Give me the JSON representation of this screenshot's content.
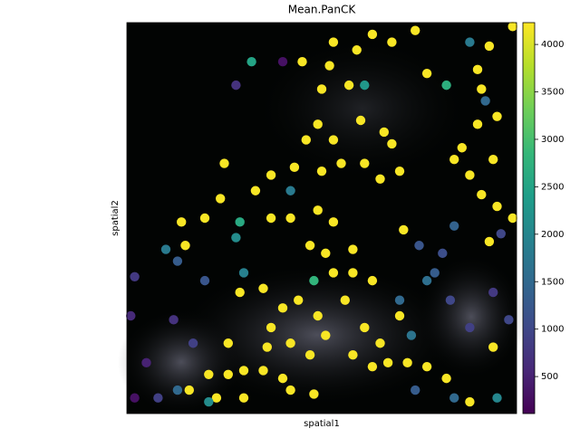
{
  "chart_data": {
    "type": "scatter",
    "title": "Mean.PanCK",
    "xlabel": "spatial1",
    "ylabel": "spatial2",
    "xlim": [
      0,
      100
    ],
    "ylim": [
      0,
      100
    ],
    "colormap": "viridis",
    "clim": [
      110,
      4230
    ],
    "cticks": [
      500,
      1000,
      1500,
      2000,
      2500,
      3000,
      3500,
      4000
    ],
    "x": [
      53,
      63,
      74,
      68,
      59,
      52,
      45,
      50,
      57,
      77,
      90,
      93,
      99,
      91,
      95,
      90,
      49,
      46,
      53,
      60,
      68,
      66,
      61,
      65,
      70,
      55,
      50,
      43,
      37,
      33,
      25,
      24,
      20,
      14,
      15,
      37,
      42,
      49,
      53,
      58,
      51,
      47,
      71,
      84,
      88,
      94,
      86,
      91,
      95,
      99,
      93,
      35,
      40,
      37,
      44,
      49,
      56,
      51,
      61,
      65,
      63,
      70,
      67,
      63,
      72,
      58,
      47,
      42,
      36,
      35,
      40,
      30,
      26,
      21,
      23,
      30,
      42,
      48,
      58,
      53,
      29,
      26,
      77,
      82,
      88,
      94,
      16,
      2,
      1,
      5,
      2,
      12,
      17,
      20,
      10,
      28,
      13,
      79,
      83,
      88,
      94,
      98,
      84,
      81,
      75,
      77,
      28,
      40,
      32,
      88,
      82,
      61,
      42,
      29,
      30,
      48,
      70,
      73,
      74,
      84,
      95,
      13,
      8,
      21,
      92,
      96
    ],
    "y": [
      95,
      97,
      98,
      95,
      93,
      89,
      90,
      83,
      84,
      87,
      88,
      94,
      99,
      83,
      76,
      74,
      74,
      70,
      70,
      75,
      69,
      72,
      64,
      60,
      62,
      64,
      62,
      63,
      61,
      57,
      64,
      55,
      50,
      49,
      43,
      50,
      50,
      52,
      49,
      42,
      41,
      43,
      47,
      65,
      61,
      65,
      68,
      56,
      53,
      50,
      44,
      32,
      27,
      22,
      29,
      25,
      29,
      20,
      22,
      18,
      34,
      25,
      13,
      12,
      13,
      15,
      15,
      18,
      17,
      11,
      9,
      11,
      10,
      10,
      4,
      4,
      6,
      5,
      36,
      36,
      31,
      18,
      12,
      9,
      3,
      17,
      6,
      35,
      25,
      13,
      4,
      24,
      18,
      34,
      42,
      45,
      39,
      36,
      29,
      22,
      31,
      24,
      48,
      41,
      43,
      34,
      84,
      90,
      90,
      95,
      84,
      84,
      57,
      49,
      36,
      34,
      29,
      20,
      6,
      4,
      4,
      6,
      4,
      3,
      80,
      46
    ],
    "values": [
      4200,
      4200,
      4200,
      4200,
      4200,
      4200,
      4200,
      4200,
      4200,
      4200,
      4200,
      4200,
      4200,
      4200,
      4200,
      4200,
      4200,
      4200,
      4200,
      4200,
      4200,
      4200,
      4200,
      4200,
      4200,
      4200,
      4200,
      4200,
      4200,
      4200,
      4200,
      4200,
      4200,
      4200,
      4200,
      4200,
      4200,
      4200,
      4200,
      4200,
      4200,
      4200,
      4200,
      4200,
      4200,
      4200,
      4200,
      4200,
      4200,
      4200,
      4200,
      4200,
      4200,
      4200,
      4200,
      4200,
      4200,
      4200,
      4200,
      4200,
      4200,
      4200,
      4200,
      4200,
      4200,
      4200,
      4200,
      4200,
      4200,
      4200,
      4200,
      4200,
      4200,
      4200,
      4200,
      4200,
      4200,
      4200,
      4200,
      4200,
      4200,
      4200,
      4200,
      4200,
      4200,
      4200,
      4200,
      800,
      600,
      500,
      300,
      700,
      900,
      1200,
      1800,
      2100,
      1300,
      1300,
      1000,
      900,
      800,
      1000,
      1400,
      1100,
      1200,
      1600,
      700,
      300,
      2500,
      1800,
      2700,
      2300,
      1800,
      2600,
      1900,
      2800,
      1500,
      1700,
      1300,
      1500,
      2000,
      1500,
      900,
      2100,
      1500,
      1000
    ]
  }
}
